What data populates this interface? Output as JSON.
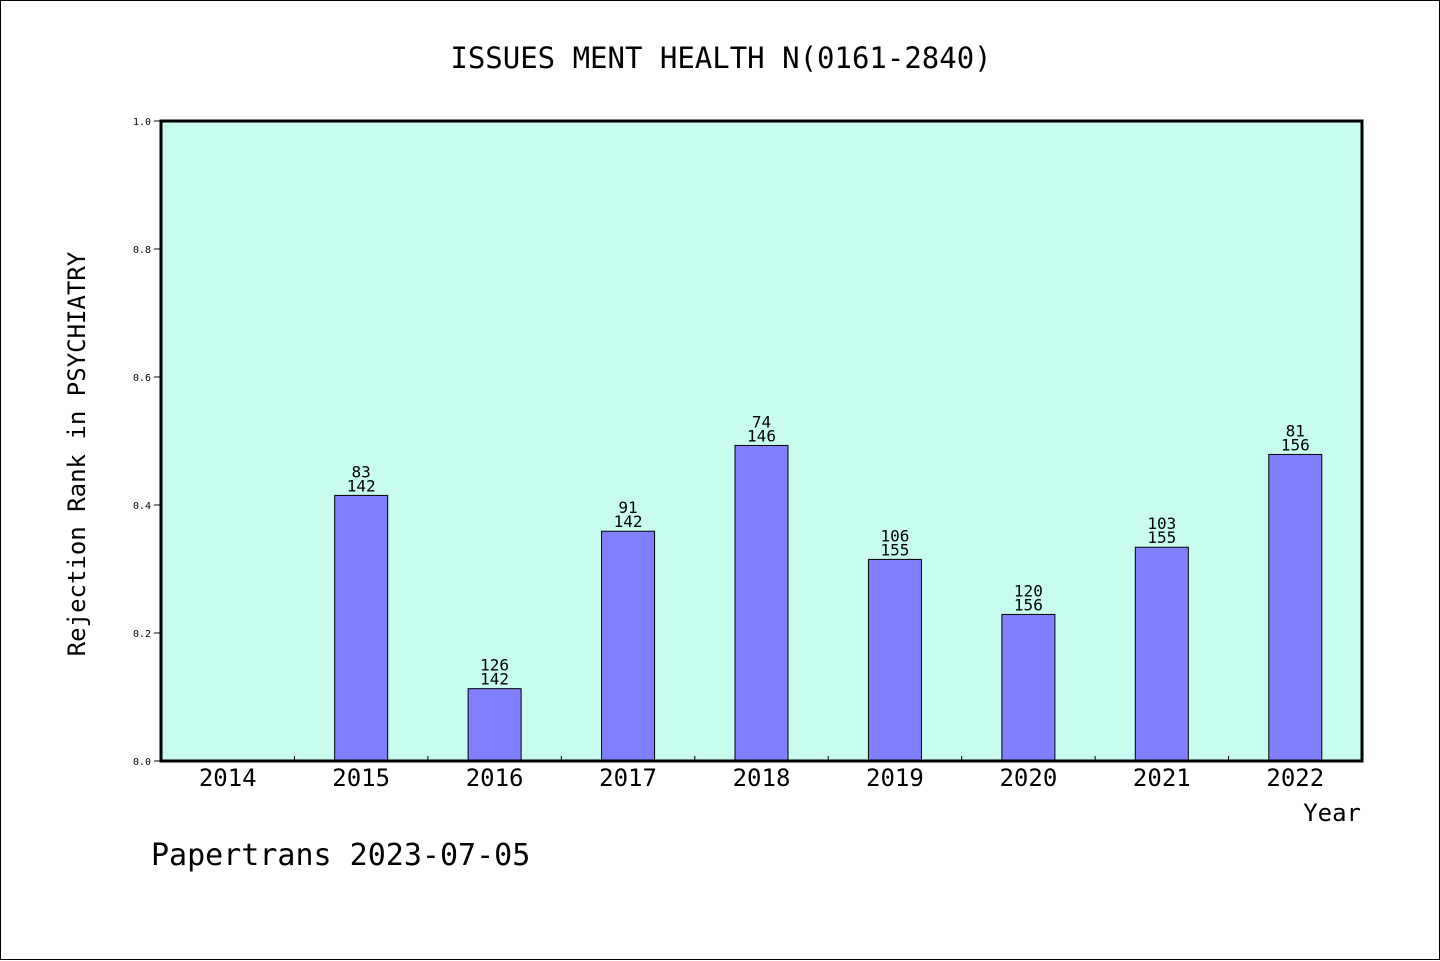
{
  "chart_data": {
    "type": "bar",
    "title": "ISSUES MENT HEALTH N(0161-2840)",
    "xlabel": "Year",
    "ylabel": "Rejection Rank in PSYCHIATRY",
    "ylim": [
      0,
      1.0
    ],
    "yticks": [
      "0.0",
      "0.2",
      "0.4",
      "0.6",
      "0.8",
      "1.0"
    ],
    "grid": false,
    "legend": "none",
    "categories": [
      "2014",
      "2015",
      "2016",
      "2017",
      "2018",
      "2019",
      "2020",
      "2021",
      "2022"
    ],
    "values": [
      0,
      0.415,
      0.113,
      0.359,
      0.493,
      0.315,
      0.229,
      0.334,
      0.479
    ],
    "labels_top": [
      "",
      "83",
      "126",
      "91",
      "74",
      "106",
      "120",
      "103",
      "81"
    ],
    "labels_bottom": [
      "",
      "142",
      "142",
      "142",
      "146",
      "155",
      "156",
      "155",
      "156"
    ],
    "colors": {
      "plot_background": "#c8fcee",
      "bar_fill": "#8080ff",
      "bar_stroke": "#000000",
      "axis": "#000000"
    }
  },
  "footer": "Papertrans 2023-07-05"
}
